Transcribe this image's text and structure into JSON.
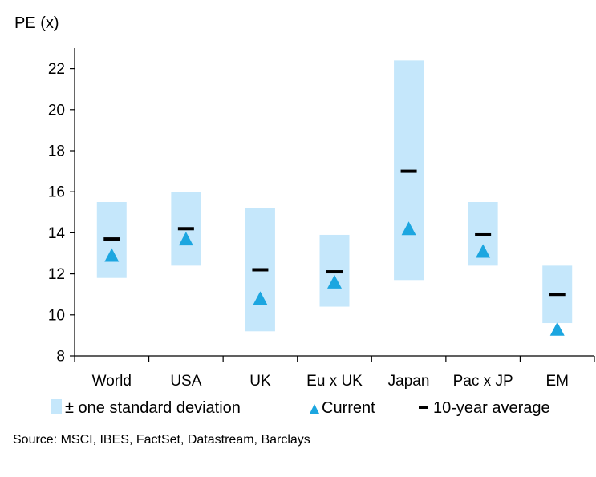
{
  "chart_data": {
    "type": "range",
    "ylabel": "PE (x)",
    "ylim": [
      8,
      23
    ],
    "yticks": [
      8,
      10,
      12,
      14,
      16,
      18,
      20,
      22
    ],
    "categories": [
      "World",
      "USA",
      "UK",
      "Eu x UK",
      "Japan",
      "Pac x JP",
      "EM"
    ],
    "series": [
      {
        "name": "± one standard deviation",
        "type": "range",
        "low": [
          11.8,
          12.4,
          9.2,
          10.4,
          11.7,
          12.4,
          9.6
        ],
        "high": [
          15.5,
          16.0,
          15.2,
          13.9,
          22.4,
          15.5,
          12.4
        ]
      },
      {
        "name": "Current",
        "type": "marker",
        "values": [
          12.9,
          13.7,
          10.8,
          11.6,
          14.2,
          13.1,
          9.3
        ]
      },
      {
        "name": "10-year average",
        "type": "dash",
        "values": [
          13.7,
          14.2,
          12.2,
          12.1,
          17.0,
          13.9,
          11.0
        ]
      }
    ],
    "colors": {
      "band": "#c5e7fb",
      "marker": "#1ca6e0",
      "dash": "#000000"
    },
    "legend_position": "bottom"
  },
  "source": "Source: MSCI, IBES, FactSet, Datastream, Barclays"
}
